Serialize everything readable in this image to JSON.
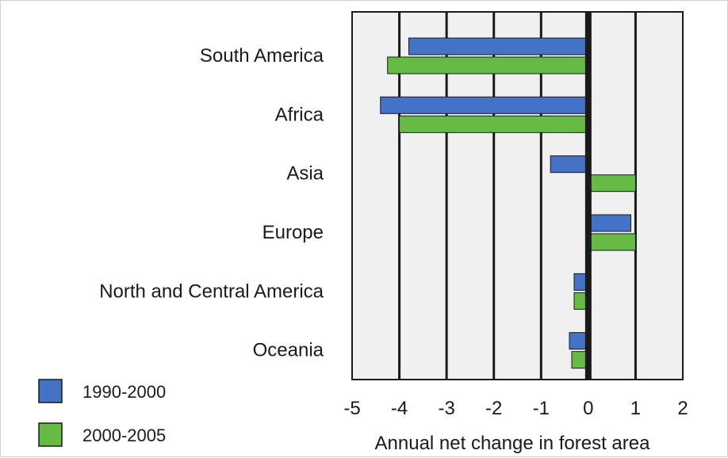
{
  "chart_data": {
    "type": "bar",
    "orientation": "horizontal",
    "categories": [
      "South America",
      "Africa",
      "Asia",
      "Europe",
      "North and Central America",
      "Oceania"
    ],
    "series": [
      {
        "name": "1990-2000",
        "color": "#4472c4",
        "values": [
          -3.8,
          -4.4,
          -0.8,
          0.9,
          -0.3,
          -0.4
        ]
      },
      {
        "name": "2000-2005",
        "color": "#66bb44",
        "values": [
          -4.25,
          -4.0,
          1.0,
          1.0,
          -0.3,
          -0.35
        ]
      }
    ],
    "xlim": [
      -5,
      2
    ],
    "xticks": [
      "-5",
      "-4",
      "-3",
      "-2",
      "-1",
      "0",
      "1",
      "2"
    ],
    "xlabel": "Annual net change in forest area",
    "grid": "vertical",
    "legend_position": "bottom-left"
  }
}
